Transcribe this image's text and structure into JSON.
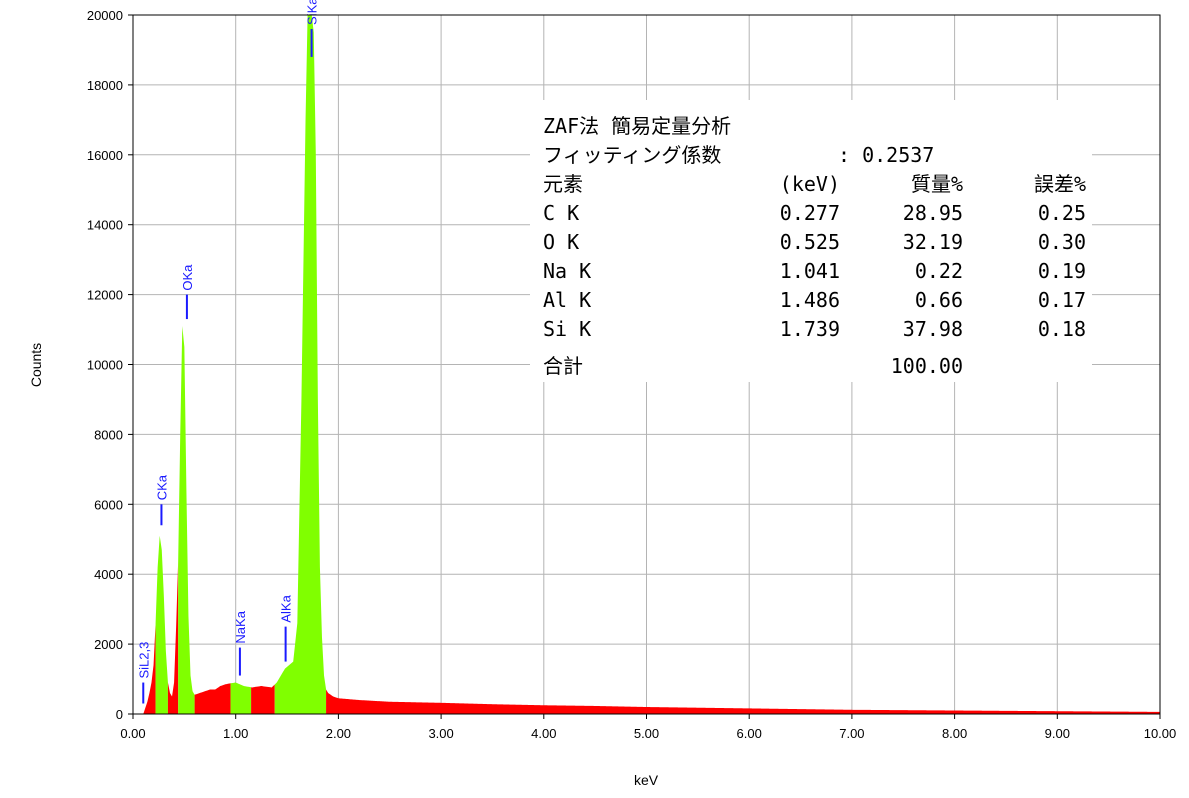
{
  "colors": {
    "spectrum_low": "#ff0000",
    "spectrum_peak": "#80ff00",
    "grid": "#b4b4b4",
    "peak_label": "#1a1aff"
  },
  "chart_data": {
    "type": "area",
    "title": "",
    "xlabel": "keV",
    "ylabel": "Counts",
    "xlim": [
      0,
      10
    ],
    "ylim": [
      0,
      20000
    ],
    "grid": true,
    "x_ticks": [
      "0.00",
      "1.00",
      "2.00",
      "3.00",
      "4.00",
      "5.00",
      "6.00",
      "7.00",
      "8.00",
      "9.00",
      "10.00"
    ],
    "y_ticks": [
      "0",
      "2000",
      "4000",
      "6000",
      "8000",
      "10000",
      "12000",
      "14000",
      "16000",
      "18000",
      "20000"
    ],
    "spectrum": {
      "x": [
        0.1,
        0.14,
        0.16,
        0.18,
        0.2,
        0.22,
        0.24,
        0.26,
        0.28,
        0.3,
        0.32,
        0.34,
        0.36,
        0.38,
        0.4,
        0.42,
        0.44,
        0.46,
        0.48,
        0.5,
        0.52,
        0.54,
        0.56,
        0.58,
        0.6,
        0.65,
        0.7,
        0.75,
        0.8,
        0.85,
        0.9,
        0.95,
        1.0,
        1.04,
        1.08,
        1.12,
        1.16,
        1.2,
        1.25,
        1.3,
        1.35,
        1.4,
        1.44,
        1.48,
        1.52,
        1.56,
        1.6,
        1.64,
        1.68,
        1.7,
        1.72,
        1.74,
        1.76,
        1.78,
        1.8,
        1.82,
        1.84,
        1.86,
        1.88,
        1.9,
        1.95,
        2.0,
        2.2,
        2.5,
        3.0,
        3.5,
        4.0,
        4.5,
        5.0,
        5.5,
        6.0,
        6.5,
        7.0,
        7.5,
        8.0,
        8.5,
        9.0,
        9.5,
        10.0
      ],
      "y": [
        0,
        350,
        600,
        900,
        1400,
        2600,
        4200,
        5100,
        4700,
        3400,
        1800,
        900,
        600,
        500,
        900,
        2500,
        4400,
        8000,
        11100,
        10500,
        6400,
        2800,
        1100,
        650,
        550,
        600,
        650,
        700,
        700,
        800,
        850,
        880,
        900,
        850,
        800,
        780,
        760,
        780,
        800,
        780,
        760,
        900,
        1100,
        1300,
        1400,
        1500,
        2600,
        9000,
        17000,
        20000,
        20000,
        20000,
        19500,
        16000,
        9000,
        4200,
        2200,
        1100,
        700,
        600,
        500,
        450,
        400,
        350,
        320,
        280,
        250,
        230,
        200,
        180,
        160,
        140,
        120,
        110,
        100,
        90,
        80,
        70,
        60
      ]
    },
    "peaks": [
      {
        "label": "SiL2,3",
        "x": 0.1,
        "y_bottom": 300,
        "y_top": 900
      },
      {
        "label": "CKa",
        "x": 0.277,
        "y_bottom": 5400,
        "y_top": 6000
      },
      {
        "label": "OKa",
        "x": 0.525,
        "y_bottom": 11300,
        "y_top": 12000
      },
      {
        "label": "NaKa",
        "x": 1.041,
        "y_bottom": 1100,
        "y_top": 1900
      },
      {
        "label": "AlKa",
        "x": 1.486,
        "y_bottom": 1500,
        "y_top": 2500
      },
      {
        "label": "SiKa",
        "x": 1.739,
        "y_bottom": 18800,
        "y_top": 19600
      }
    ],
    "results": {
      "title": "ZAF法 簡易定量分析",
      "fitting_label": "フィッティング係数",
      "fitting_value": ": 0.2537",
      "headers": [
        "元素",
        "(keV)",
        "質量%",
        "誤差%"
      ],
      "rows": [
        [
          "C  K",
          "0.277",
          "28.95",
          "0.25"
        ],
        [
          "O  K",
          "0.525",
          "32.19",
          "0.30"
        ],
        [
          "Na K",
          "1.041",
          "0.22",
          "0.19"
        ],
        [
          "Al K",
          "1.486",
          "0.66",
          "0.17"
        ],
        [
          "Si K",
          "1.739",
          "37.98",
          "0.18"
        ]
      ],
      "total_label": "合計",
      "total_value": "100.00"
    }
  }
}
